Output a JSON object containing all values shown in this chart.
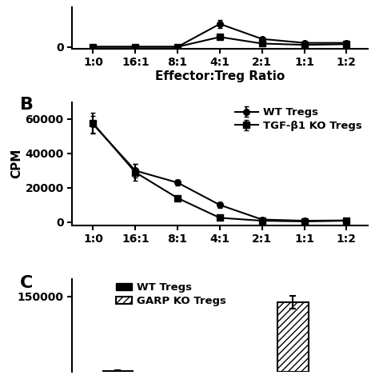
{
  "panel_A": {
    "x_labels": [
      "1:0",
      "16:1",
      "8:1",
      "4:1",
      "2:1",
      "1:1",
      "1:2"
    ],
    "wt_values": [
      0,
      0,
      0,
      3500,
      1200,
      600,
      600
    ],
    "wt_errors": [
      0,
      0,
      0,
      600,
      250,
      150,
      150
    ],
    "ko_values": [
      0,
      0,
      0,
      1500,
      500,
      300,
      400
    ],
    "ko_errors": [
      0,
      0,
      0,
      300,
      100,
      100,
      100
    ],
    "yticks": [
      0
    ],
    "ylabel": "",
    "xlabel": "Effector:Treg Ratio",
    "ylim": [
      -300,
      6000
    ]
  },
  "panel_B": {
    "x_labels": [
      "1:0",
      "16:1",
      "8:1",
      "4:1",
      "2:1",
      "1:1",
      "1:2"
    ],
    "wt_values": [
      57000,
      30000,
      23000,
      10000,
      1500,
      800,
      1000
    ],
    "wt_errors": [
      5000,
      4000,
      1500,
      1500,
      400,
      200,
      200
    ],
    "ko_values": [
      57500,
      29000,
      14000,
      2500,
      800,
      400,
      800
    ],
    "ko_errors": [
      6000,
      5000,
      1500,
      800,
      300,
      150,
      150
    ],
    "yticks": [
      0,
      20000,
      40000,
      60000
    ],
    "ylabel": "CPM",
    "xlabel": "",
    "ylim": [
      -2000,
      70000
    ],
    "legend_wt": "WT Tregs",
    "legend_ko": "TGF-β1 KO Tregs",
    "panel_label": "B"
  },
  "panel_C": {
    "wt_value": 2000,
    "wt_error": 300,
    "garp_value": 138000,
    "garp_error": 13000,
    "ylim": [
      0,
      185000
    ],
    "ytick": 150000,
    "legend_wt": "WT Tregs",
    "legend_garp": "GARP KO Tregs",
    "panel_label": "C"
  },
  "background_color": "#ffffff",
  "font_size": 11,
  "tick_font_size": 10,
  "label_fontsize": 16
}
